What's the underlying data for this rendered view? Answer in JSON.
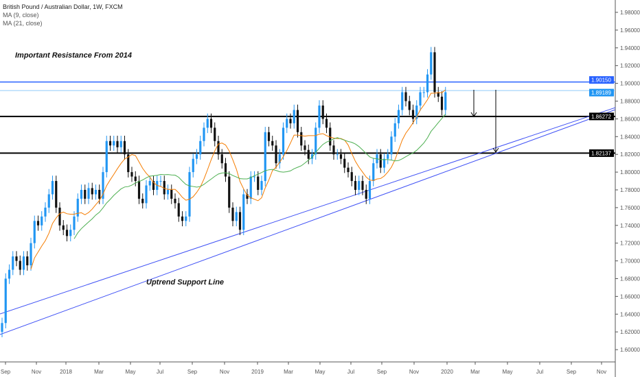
{
  "header": {
    "title": "British Pound / Australian Dollar, 1W, FXCM",
    "ma1": "MA (9, close)",
    "ma2": "MA (21, close)"
  },
  "annotations": {
    "resistance": "Important Resistance From 2014",
    "support": "Uptrend Support Line"
  },
  "colors": {
    "up": "#2196f3",
    "down": "#111111",
    "ma9": "#f57c00",
    "ma21": "#4caf50",
    "trend": "#3f51f5",
    "res": "#2962ff"
  },
  "chart_data": {
    "type": "candlestick",
    "symbol": "GBPAUD",
    "interval": "1W",
    "ylim": [
      1.59,
      1.99
    ],
    "yticks": [
      "1.60000",
      "1.62000",
      "1.64000",
      "1.66000",
      "1.68000",
      "1.70000",
      "1.72000",
      "1.74000",
      "1.76000",
      "1.78000",
      "1.80000",
      "1.82000",
      "1.84000",
      "1.86000",
      "1.88000",
      "1.90000",
      "1.92000",
      "1.94000",
      "1.96000",
      "1.98000"
    ],
    "xticks": [
      "Sep",
      "Nov",
      "2018",
      "Mar",
      "May",
      "Jul",
      "Sep",
      "Nov",
      "2019",
      "Mar",
      "May",
      "Jul",
      "Sep",
      "Nov",
      "2020",
      "Mar",
      "May",
      "Jul",
      "Sep",
      "Nov"
    ],
    "wick": 0.006,
    "closes": [
      1.63,
      1.68,
      1.69,
      1.705,
      1.7,
      1.69,
      1.705,
      1.695,
      1.72,
      1.745,
      1.74,
      1.75,
      1.76,
      1.775,
      1.79,
      1.76,
      1.74,
      1.735,
      1.728,
      1.735,
      1.75,
      1.77,
      1.78,
      1.77,
      1.782,
      1.775,
      1.78,
      1.77,
      1.8,
      1.835,
      1.83,
      1.835,
      1.828,
      1.835,
      1.82,
      1.8,
      1.795,
      1.79,
      1.77,
      1.765,
      1.785,
      1.79,
      1.78,
      1.79,
      1.79,
      1.775,
      1.78,
      1.77,
      1.765,
      1.75,
      1.745,
      1.75,
      1.8,
      1.815,
      1.82,
      1.835,
      1.85,
      1.86,
      1.85,
      1.835,
      1.82,
      1.81,
      1.795,
      1.76,
      1.745,
      1.755,
      1.735,
      1.775,
      1.77,
      1.795,
      1.795,
      1.78,
      1.79,
      1.845,
      1.835,
      1.83,
      1.81,
      1.82,
      1.85,
      1.86,
      1.855,
      1.87,
      1.845,
      1.83,
      1.825,
      1.815,
      1.82,
      1.85,
      1.875,
      1.86,
      1.85,
      1.83,
      1.82,
      1.82,
      1.815,
      1.805,
      1.8,
      1.79,
      1.78,
      1.79,
      1.78,
      1.77,
      1.79,
      1.81,
      1.82,
      1.805,
      1.815,
      1.82,
      1.84,
      1.855,
      1.87,
      1.89,
      1.88,
      1.87,
      1.86,
      1.875,
      1.89,
      1.89,
      1.91,
      1.935,
      1.89,
      1.885,
      1.87,
      1.89
    ],
    "levels": [
      {
        "price": "1.90150",
        "kind": "resistance"
      },
      {
        "price": "1.89189",
        "kind": "last"
      },
      {
        "price": "1.86272",
        "kind": "support"
      },
      {
        "price": "1.82137",
        "kind": "support"
      }
    ]
  }
}
